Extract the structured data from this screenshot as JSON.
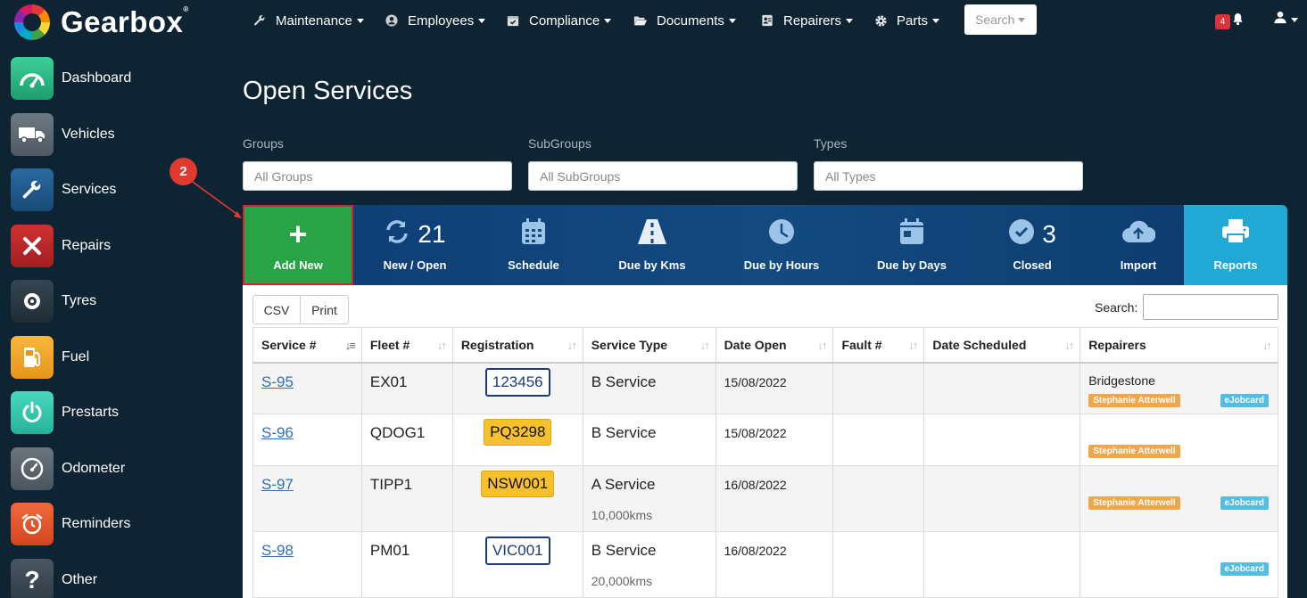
{
  "brand": {
    "name": "Gearbox"
  },
  "nav": {
    "items": [
      {
        "label": "Maintenance",
        "icon": "wrench-icon"
      },
      {
        "label": "Employees",
        "icon": "user-circle-icon"
      },
      {
        "label": "Compliance",
        "icon": "calendar-check-icon"
      },
      {
        "label": "Documents",
        "icon": "folder-open-icon"
      },
      {
        "label": "Repairers",
        "icon": "address-card-icon"
      },
      {
        "label": "Parts",
        "icon": "gear-icon"
      }
    ],
    "search_label": "Search",
    "notification_count": "4"
  },
  "sidebar": {
    "items": [
      {
        "label": "Dashboard",
        "icon": "speedometer-icon",
        "color": "#2bb584"
      },
      {
        "label": "Vehicles",
        "icon": "truck-icon",
        "color": "#5f6b74"
      },
      {
        "label": "Services",
        "icon": "wrench-icon",
        "color": "#1f5a8c"
      },
      {
        "label": "Repairs",
        "icon": "tools-icon",
        "color": "#b8282a"
      },
      {
        "label": "Tyres",
        "icon": "tyre-icon",
        "color": "#2b3a45"
      },
      {
        "label": "Fuel",
        "icon": "fuel-pump-icon",
        "color": "#f3a62a"
      },
      {
        "label": "Prestarts",
        "icon": "power-icon",
        "color": "#3ac9b0"
      },
      {
        "label": "Odometer",
        "icon": "gauge-icon",
        "color": "#5d6770"
      },
      {
        "label": "Reminders",
        "icon": "alarm-clock-icon",
        "color": "#e4562a"
      },
      {
        "label": "Other",
        "icon": "question-icon",
        "color": "#3d4a55"
      }
    ]
  },
  "page": {
    "title": "Open Services"
  },
  "filters": [
    {
      "label": "Groups",
      "placeholder": "All Groups"
    },
    {
      "label": "SubGroups",
      "placeholder": "All SubGroups"
    },
    {
      "label": "Types",
      "placeholder": "All Types"
    }
  ],
  "annotation": {
    "step": "2"
  },
  "toolbar": {
    "add_new": "Add New",
    "new_open": {
      "label": "New / Open",
      "count": "21"
    },
    "schedule": "Schedule",
    "due_kms": "Due by Kms",
    "due_hours": "Due by Hours",
    "due_days": "Due by Days",
    "closed": {
      "label": "Closed",
      "count": "3"
    },
    "import": "Import",
    "reports": "Reports"
  },
  "table_controls": {
    "csv": "CSV",
    "print": "Print",
    "search_label": "Search:"
  },
  "table": {
    "columns": [
      "Service #",
      "Fleet #",
      "Registration",
      "Service Type",
      "Date Open",
      "Fault #",
      "Date Scheduled",
      "Repairers"
    ],
    "rows": [
      {
        "service": "S-95",
        "fleet": "EX01",
        "registration": "123456",
        "reg_style": "white",
        "service_type": "B Service",
        "service_sub": "",
        "date_open": "15/08/2022",
        "fault": "",
        "date_scheduled": "",
        "repairer": "Bridgestone",
        "assignee": "Stephanie Atterwell",
        "ejobcard": "eJobcard"
      },
      {
        "service": "S-96",
        "fleet": "QDOG1",
        "registration": "PQ3298",
        "reg_style": "yellow",
        "service_type": "B Service",
        "service_sub": "",
        "date_open": "15/08/2022",
        "fault": "",
        "date_scheduled": "",
        "repairer": "",
        "assignee": "Stephanie Atterwell",
        "ejobcard": ""
      },
      {
        "service": "S-97",
        "fleet": "TIPP1",
        "registration": "NSW001",
        "reg_style": "yellow",
        "service_type": "A Service",
        "service_sub": "10,000kms",
        "date_open": "16/08/2022",
        "fault": "",
        "date_scheduled": "",
        "repairer": "",
        "assignee": "Stephanie Atterwell",
        "ejobcard": "eJobcard"
      },
      {
        "service": "S-98",
        "fleet": "PM01",
        "registration": "VIC001",
        "reg_style": "white",
        "service_type": "B Service",
        "service_sub": "20,000kms",
        "date_open": "16/08/2022",
        "fault": "",
        "date_scheduled": "",
        "repairer": "",
        "assignee": "",
        "ejobcard": "eJobcard"
      }
    ]
  }
}
